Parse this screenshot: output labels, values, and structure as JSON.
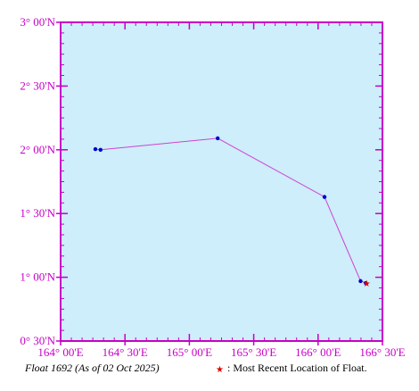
{
  "map": {
    "lon_range": [
      164.0,
      166.5
    ],
    "lat_range": [
      0.5,
      3.0
    ],
    "colors": {
      "ocean": "#cdeefa",
      "frame": "#c800c8",
      "track": "#d040d0",
      "point": "#0000cc",
      "latest": "#e00000"
    },
    "x_ticks": [
      {
        "value": 164.0,
        "label": "164° 00'E"
      },
      {
        "value": 164.5,
        "label": "164° 30'E"
      },
      {
        "value": 165.0,
        "label": "165° 00'E"
      },
      {
        "value": 165.5,
        "label": "165° 30'E"
      },
      {
        "value": 166.0,
        "label": "166° 00'E"
      },
      {
        "value": 166.5,
        "label": "166° 30'E"
      }
    ],
    "y_ticks": [
      {
        "value": 3.0,
        "label": "3° 00'N"
      },
      {
        "value": 2.5,
        "label": "2° 30'N"
      },
      {
        "value": 2.0,
        "label": "2° 00'N"
      },
      {
        "value": 1.5,
        "label": "1° 30'N"
      },
      {
        "value": 1.0,
        "label": "1° 00'N"
      },
      {
        "value": 0.5,
        "label": "0° 30'N"
      }
    ],
    "track": [
      {
        "lon": 164.27,
        "lat": 2.005
      },
      {
        "lon": 164.31,
        "lat": 2.0
      },
      {
        "lon": 165.22,
        "lat": 2.09
      },
      {
        "lon": 166.05,
        "lat": 1.63
      },
      {
        "lon": 166.33,
        "lat": 0.97
      },
      {
        "lon": 166.37,
        "lat": 0.955
      }
    ],
    "latest_marker": "★"
  },
  "caption": {
    "float_label": "Float 1692 (As of 02 Oct 2025)",
    "legend_star": "★",
    "legend_text": ": Most Recent Location of Float."
  }
}
